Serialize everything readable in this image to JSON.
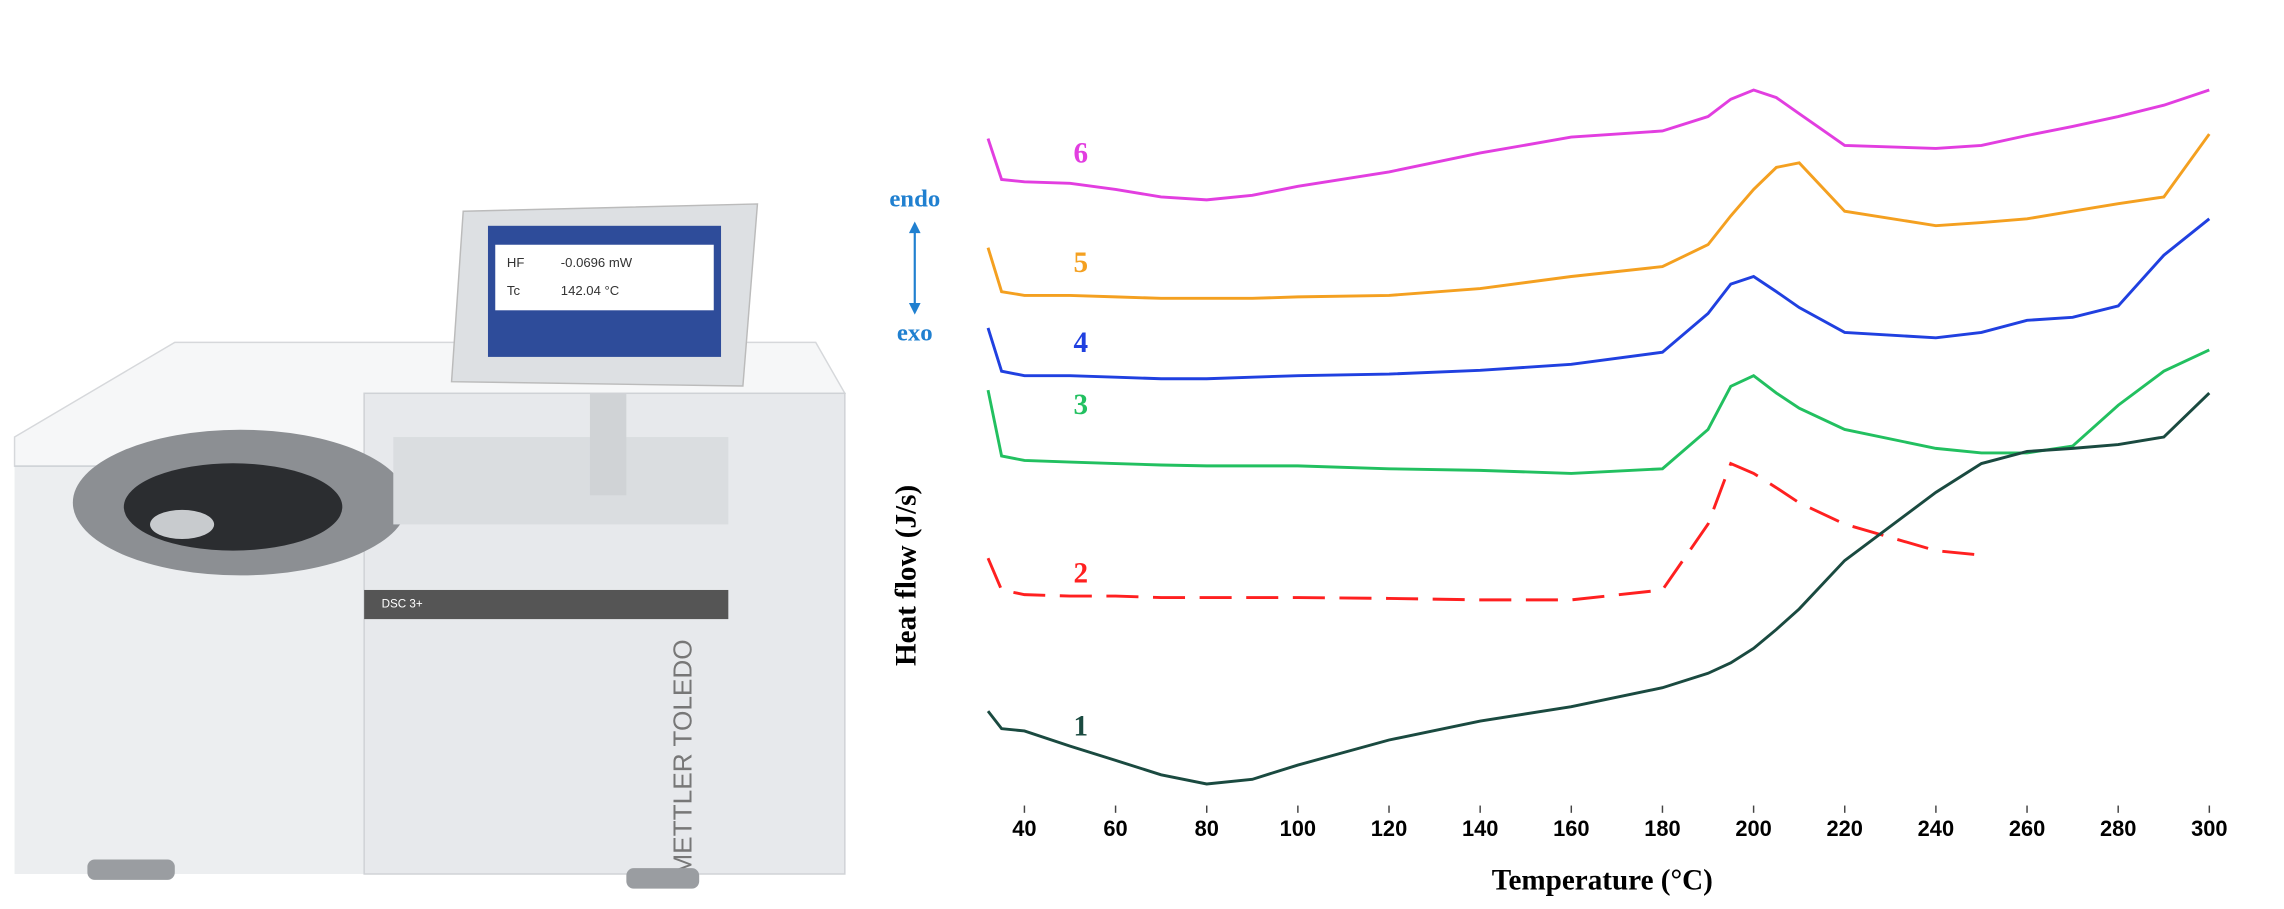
{
  "photo": {
    "brand": "METTLER TOLEDO",
    "model": "DSC 3+",
    "screen": [
      [
        "HF",
        "-0.0696 mW"
      ],
      [
        "Tc",
        "142.04 °C"
      ]
    ]
  },
  "chart_data": {
    "type": "line",
    "xlabel": "Temperature (°C)",
    "ylabel": "Heat flow (J/s)",
    "annotations": {
      "up": "endo",
      "down": "exo"
    },
    "x": [
      32,
      35,
      40,
      50,
      60,
      70,
      80,
      90,
      100,
      120,
      140,
      160,
      180,
      190,
      195,
      200,
      205,
      210,
      220,
      240,
      250,
      260,
      270,
      280,
      290,
      300
    ],
    "xlim": [
      30,
      302
    ],
    "xticks": [
      40,
      60,
      80,
      100,
      120,
      140,
      160,
      180,
      200,
      220,
      240,
      260,
      280,
      300
    ],
    "ylim": [
      0,
      100
    ],
    "series": [
      {
        "name": "6",
        "color": "#e23ee0",
        "values": [
          89.4,
          84.0,
          83.7,
          83.5,
          82.7,
          81.7,
          81.3,
          81.9,
          83.1,
          85.0,
          87.5,
          89.6,
          90.4,
          92.3,
          94.6,
          95.8,
          94.8,
          92.7,
          88.5,
          88.1,
          88.5,
          89.8,
          91.0,
          92.3,
          93.8,
          95.8
        ]
      },
      {
        "name": "5",
        "color": "#f4a020",
        "values": [
          75.0,
          69.2,
          68.7,
          68.7,
          68.5,
          68.3,
          68.3,
          68.3,
          68.5,
          68.7,
          69.6,
          71.2,
          72.5,
          75.4,
          79.2,
          82.7,
          85.6,
          86.2,
          79.8,
          77.9,
          78.3,
          78.8,
          79.8,
          80.8,
          81.7,
          90.0
        ]
      },
      {
        "name": "4",
        "color": "#2040e0",
        "values": [
          64.4,
          58.7,
          58.1,
          58.1,
          57.9,
          57.7,
          57.7,
          57.9,
          58.1,
          58.3,
          58.8,
          59.6,
          61.2,
          66.3,
          70.2,
          71.2,
          69.2,
          67.1,
          63.8,
          63.1,
          63.8,
          65.4,
          65.8,
          67.3,
          74.0,
          78.8
        ]
      },
      {
        "name": "3",
        "color": "#22c060",
        "values": [
          56.2,
          47.5,
          46.9,
          46.7,
          46.5,
          46.3,
          46.2,
          46.2,
          46.2,
          45.8,
          45.6,
          45.2,
          45.8,
          51.0,
          56.7,
          58.1,
          55.8,
          53.8,
          51.0,
          48.5,
          47.9,
          47.9,
          48.8,
          54.2,
          58.7,
          61.5
        ]
      },
      {
        "name": "2",
        "color": "#ff2020",
        "dashed": true,
        "values": [
          34.0,
          29.8,
          29.2,
          29.0,
          29.0,
          28.8,
          28.8,
          28.8,
          28.8,
          28.7,
          28.5,
          28.5,
          29.8,
          38.5,
          46.5,
          45.2,
          43.3,
          41.3,
          38.5,
          35.0,
          34.4,
          null,
          null,
          null,
          null,
          null
        ]
      },
      {
        "name": "1",
        "color": "#1a4a40",
        "values": [
          13.8,
          11.5,
          11.2,
          9.2,
          7.3,
          5.4,
          4.2,
          4.8,
          6.7,
          10.0,
          12.5,
          14.4,
          16.9,
          18.8,
          20.2,
          22.1,
          24.6,
          27.3,
          33.7,
          42.7,
          46.5,
          48.1,
          48.5,
          49.0,
          50.0,
          55.8
        ]
      }
    ]
  }
}
